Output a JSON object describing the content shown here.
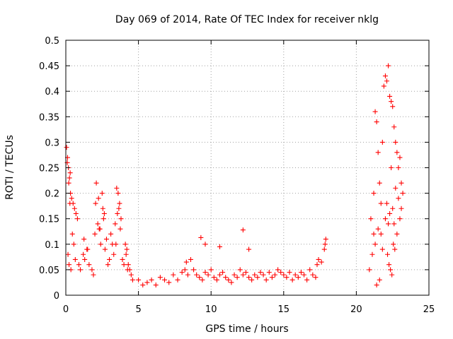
{
  "chart_data": {
    "type": "scatter",
    "title": "Day 069 of 2014, Rate Of TEC Index for receiver nklg",
    "xlabel": "GPS time / hours",
    "ylabel": "ROTI / TECUs",
    "xlim": [
      0,
      25
    ],
    "ylim": [
      0,
      0.5
    ],
    "x_ticks": [
      0,
      5,
      10,
      15,
      20,
      25
    ],
    "x_tick_labels": [
      "0",
      "5",
      "10",
      "15",
      "20",
      "25"
    ],
    "y_ticks": [
      0,
      0.05,
      0.1,
      0.15,
      0.2,
      0.25,
      0.3,
      0.35,
      0.4,
      0.45,
      0.5
    ],
    "y_tick_labels": [
      "0",
      "0.05",
      "0.1",
      "0.15",
      "0.2",
      "0.25",
      "0.3",
      "0.35",
      "0.4",
      "0.45",
      "0.5"
    ],
    "grid": true,
    "marker": "+",
    "color": "#ff0000",
    "series": [
      {
        "x": [
          0.05,
          0.12,
          0.18,
          0.25,
          0.3,
          0.1,
          0.2,
          0.15,
          0.22,
          0.4,
          0.5,
          0.6,
          0.7,
          0.8,
          0.45,
          0.55,
          0.35,
          0.65,
          0.9,
          1.0,
          1.2,
          1.3,
          1.5,
          1.6,
          1.8,
          1.9,
          2.0,
          2.1,
          2.2,
          2.3,
          2.4,
          2.5,
          2.6,
          2.7,
          2.8,
          2.9,
          3.0,
          3.1,
          3.2,
          3.3,
          3.4,
          3.5,
          3.6,
          3.7,
          3.8,
          3.9,
          4.0,
          4.1,
          4.2,
          4.3,
          4.4,
          4.5,
          4.6,
          2.05,
          2.25,
          2.35,
          2.55,
          2.65,
          3.55,
          3.65,
          3.75,
          3.45,
          0.28,
          0.32,
          1.25,
          1.45,
          4.15,
          4.25
        ],
        "y": [
          0.29,
          0.27,
          0.25,
          0.23,
          0.24,
          0.26,
          0.22,
          0.08,
          0.06,
          0.19,
          0.18,
          0.17,
          0.16,
          0.15,
          0.12,
          0.1,
          0.05,
          0.07,
          0.06,
          0.05,
          0.08,
          0.07,
          0.09,
          0.06,
          0.05,
          0.04,
          0.12,
          0.22,
          0.14,
          0.13,
          0.1,
          0.2,
          0.15,
          0.09,
          0.11,
          0.06,
          0.07,
          0.12,
          0.1,
          0.08,
          0.14,
          0.21,
          0.2,
          0.18,
          0.15,
          0.07,
          0.06,
          0.1,
          0.09,
          0.06,
          0.05,
          0.04,
          0.03,
          0.18,
          0.19,
          0.13,
          0.17,
          0.16,
          0.16,
          0.17,
          0.13,
          0.1,
          0.18,
          0.2,
          0.11,
          0.09,
          0.08,
          0.05
        ]
      },
      {
        "x": [
          5.0,
          5.3,
          5.6,
          5.9,
          6.2,
          6.5,
          6.8,
          7.1,
          7.4,
          7.7,
          8.0,
          8.2,
          8.4,
          8.6,
          8.8,
          9.0,
          9.2,
          9.4,
          9.6,
          9.8,
          10.0,
          10.2,
          10.4,
          10.6,
          10.8,
          11.0,
          11.2,
          11.4,
          11.6,
          11.8,
          12.0,
          12.2,
          12.4,
          12.6,
          12.8,
          13.0,
          13.2,
          13.4,
          13.6,
          13.8,
          14.0,
          14.2,
          14.4,
          14.6,
          14.8,
          15.0,
          15.2,
          15.4,
          15.6,
          15.8,
          16.0,
          16.2,
          16.4,
          16.6,
          16.8,
          17.0,
          17.2,
          17.4,
          17.6,
          17.8,
          9.3,
          9.6,
          10.6,
          12.2,
          12.6,
          17.9,
          17.85,
          8.3,
          17.3
        ],
        "y": [
          0.03,
          0.02,
          0.025,
          0.03,
          0.02,
          0.035,
          0.03,
          0.025,
          0.04,
          0.03,
          0.045,
          0.05,
          0.04,
          0.07,
          0.05,
          0.04,
          0.035,
          0.03,
          0.045,
          0.04,
          0.05,
          0.035,
          0.03,
          0.04,
          0.045,
          0.035,
          0.03,
          0.025,
          0.04,
          0.035,
          0.05,
          0.04,
          0.045,
          0.035,
          0.03,
          0.04,
          0.035,
          0.045,
          0.04,
          0.03,
          0.045,
          0.035,
          0.04,
          0.05,
          0.045,
          0.04,
          0.035,
          0.045,
          0.03,
          0.04,
          0.035,
          0.045,
          0.04,
          0.03,
          0.05,
          0.04,
          0.035,
          0.07,
          0.065,
          0.09,
          0.113,
          0.1,
          0.095,
          0.128,
          0.09,
          0.11,
          0.1,
          0.065,
          0.06
        ]
      },
      {
        "x": [
          20.9,
          21.0,
          21.1,
          21.2,
          21.3,
          21.4,
          21.5,
          21.6,
          21.7,
          21.8,
          21.9,
          22.0,
          22.1,
          22.2,
          22.3,
          22.4,
          22.5,
          22.6,
          22.7,
          22.8,
          22.9,
          23.0,
          23.1,
          23.2,
          21.2,
          21.3,
          21.5,
          21.7,
          22.0,
          22.1,
          22.2,
          22.3,
          22.5,
          22.6,
          22.8,
          23.0,
          21.4,
          21.6,
          22.4,
          22.7,
          22.9,
          23.1,
          21.8,
          22.15,
          22.25,
          22.35,
          22.45,
          22.55,
          22.65
        ],
        "y": [
          0.05,
          0.15,
          0.08,
          0.2,
          0.36,
          0.34,
          0.28,
          0.22,
          0.18,
          0.3,
          0.41,
          0.43,
          0.42,
          0.45,
          0.39,
          0.38,
          0.37,
          0.33,
          0.3,
          0.28,
          0.25,
          0.27,
          0.22,
          0.2,
          0.12,
          0.1,
          0.13,
          0.12,
          0.15,
          0.18,
          0.14,
          0.16,
          0.17,
          0.14,
          0.12,
          0.15,
          0.02,
          0.03,
          0.25,
          0.21,
          0.19,
          0.17,
          0.09,
          0.08,
          0.06,
          0.05,
          0.04,
          0.1,
          0.09
        ]
      }
    ]
  }
}
